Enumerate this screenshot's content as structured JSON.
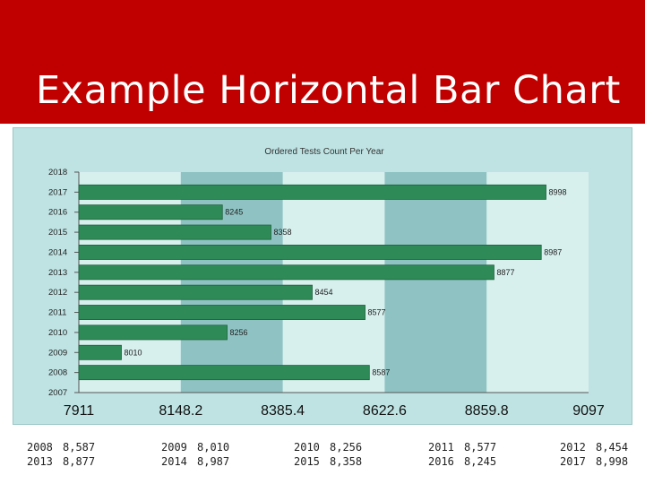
{
  "slide": {
    "title": "Example Horizontal Bar Chart",
    "colors": {
      "header": "#c00000",
      "bar": "#2e8b57",
      "band_dark": "#8fc3c3",
      "band_light": "#d7f0ee"
    }
  },
  "chart_data": {
    "type": "bar",
    "orientation": "horizontal",
    "title": "Ordered Tests Count Per Year",
    "xlabel": "",
    "ylabel": "",
    "xlim": [
      7911,
      9097
    ],
    "x_ticks": [
      "7911",
      "8148.2",
      "8385.4",
      "8622.6",
      "8859.8",
      "9097"
    ],
    "y_ticks": [
      "2018",
      "2017",
      "2016",
      "2015",
      "2014",
      "2013",
      "2012",
      "2011",
      "2010",
      "2009",
      "2008",
      "2007"
    ],
    "categories": [
      "2017",
      "2016",
      "2015",
      "2014",
      "2013",
      "2012",
      "2011",
      "2010",
      "2009",
      "2008"
    ],
    "values": [
      8998,
      8245,
      8358,
      8987,
      8877,
      8454,
      8577,
      8256,
      8010,
      8587
    ],
    "data_labels": [
      "8998",
      "8245",
      "8358",
      "8987",
      "8877",
      "8454",
      "8577",
      "8256",
      "8010",
      "8587"
    ],
    "grid": "alternating vertical bands",
    "legend": "none"
  },
  "table": {
    "rows": [
      [
        {
          "year": "2008",
          "value": "8,587"
        },
        {
          "year": "2009",
          "value": "8,010"
        },
        {
          "year": "2010",
          "value": "8,256"
        },
        {
          "year": "2011",
          "value": "8,577"
        },
        {
          "year": "2012",
          "value": "8,454"
        }
      ],
      [
        {
          "year": "2013",
          "value": "8,877"
        },
        {
          "year": "2014",
          "value": "8,987"
        },
        {
          "year": "2015",
          "value": "8,358"
        },
        {
          "year": "2016",
          "value": "8,245"
        },
        {
          "year": "2017",
          "value": "8,998"
        }
      ]
    ]
  }
}
